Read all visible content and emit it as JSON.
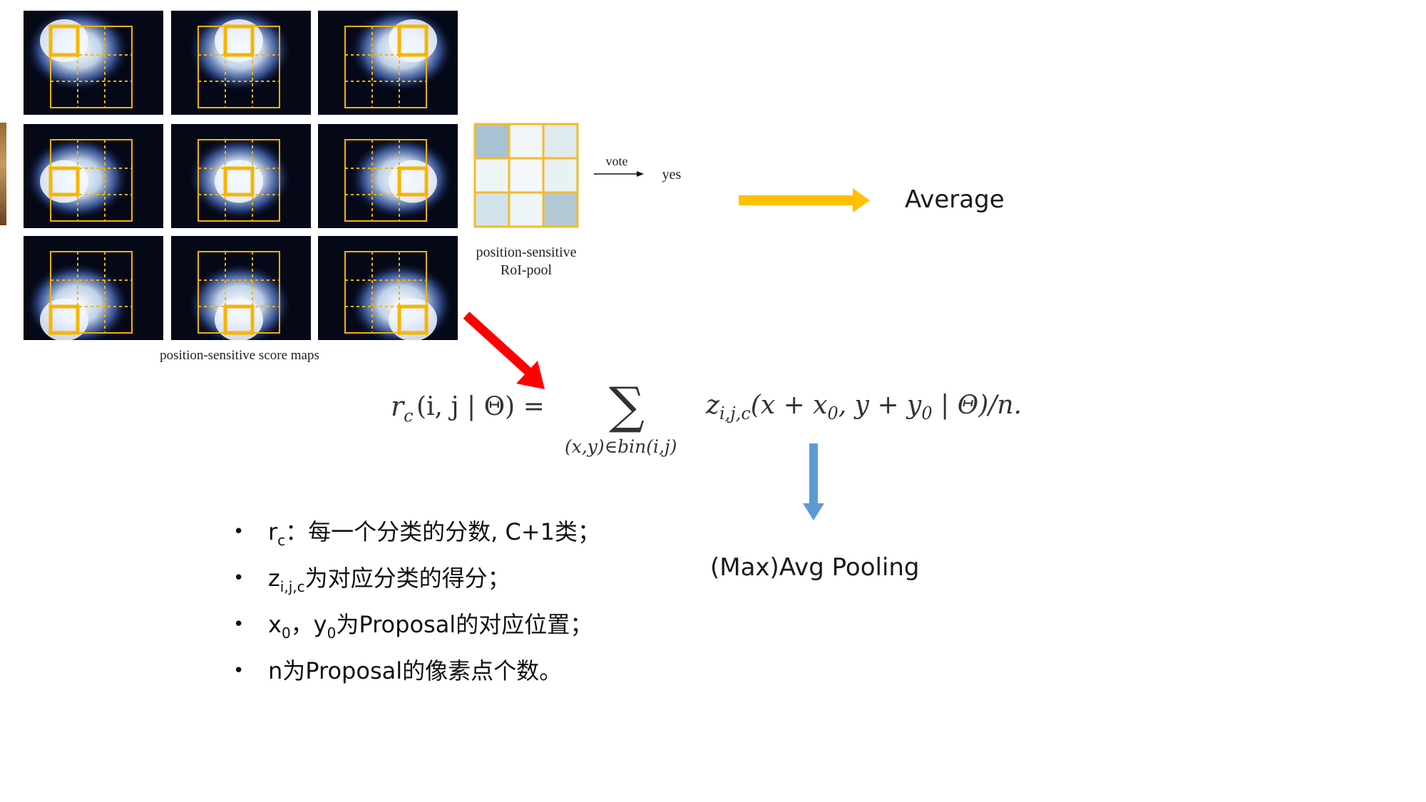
{
  "score_maps": {
    "caption": "position-sensitive score maps",
    "tiles": [
      {
        "id": "top-left",
        "row": 0,
        "col": 0
      },
      {
        "id": "top-center",
        "row": 0,
        "col": 1
      },
      {
        "id": "top-right",
        "row": 0,
        "col": 2
      },
      {
        "id": "middle-left",
        "row": 1,
        "col": 0
      },
      {
        "id": "center",
        "row": 1,
        "col": 1
      },
      {
        "id": "middle-right",
        "row": 1,
        "col": 2
      },
      {
        "id": "bottom-left",
        "row": 2,
        "col": 0
      },
      {
        "id": "bottom-center",
        "row": 2,
        "col": 1
      },
      {
        "id": "bottom-right",
        "row": 2,
        "col": 2
      }
    ],
    "grid_color": "#f2b300",
    "highlight_color": "#f7b500"
  },
  "roi_pool": {
    "caption_line1": "position-sensitive",
    "caption_line2": "RoI-pool",
    "cell_colors": [
      "#a7c2d3",
      "#f0f6f8",
      "#dfeaef",
      "#eef5f7",
      "#f4f8fa",
      "#e8f1f4",
      "#d2e2ea",
      "#eef5f7",
      "#b3cad6"
    ],
    "border_color": "#f3bb2a"
  },
  "vote": {
    "label": "vote",
    "result": "yes"
  },
  "average": {
    "label": "Average",
    "arrow_color": "#ffc000"
  },
  "red_arrow_color": "#ff0000",
  "blue_arrow_color": "#5b9bd5",
  "pooling": {
    "label": "(Max)Avg Pooling"
  },
  "formula": {
    "lhs": "r",
    "lhs_sub": "c",
    "lhs_args": "(i, j | Θ) =",
    "sigma": "∑",
    "sum_index": "(x,y)∈bin(i,j)",
    "rhs": "z",
    "rhs_sub": "i,j,c",
    "rhs_args": "(x + x",
    "rhs_x0_sub": "0",
    "rhs_mid": ", y + y",
    "rhs_y0_sub": "0",
    "rhs_end": " | Θ)/n."
  },
  "bullets": [
    {
      "main": "r",
      "sub": "c",
      "rest": "：每一个分类的分数, C+1类；"
    },
    {
      "main": "z",
      "sub": "i,j,c",
      "rest": "为对应分类的得分；"
    },
    {
      "main": "x",
      "sub": "0",
      "mid": "，y",
      "sub2": "0",
      "rest": "为Proposal的对应位置；"
    },
    {
      "main": "n为Proposal的像素点个数。"
    }
  ],
  "bullet_glyph": "•"
}
